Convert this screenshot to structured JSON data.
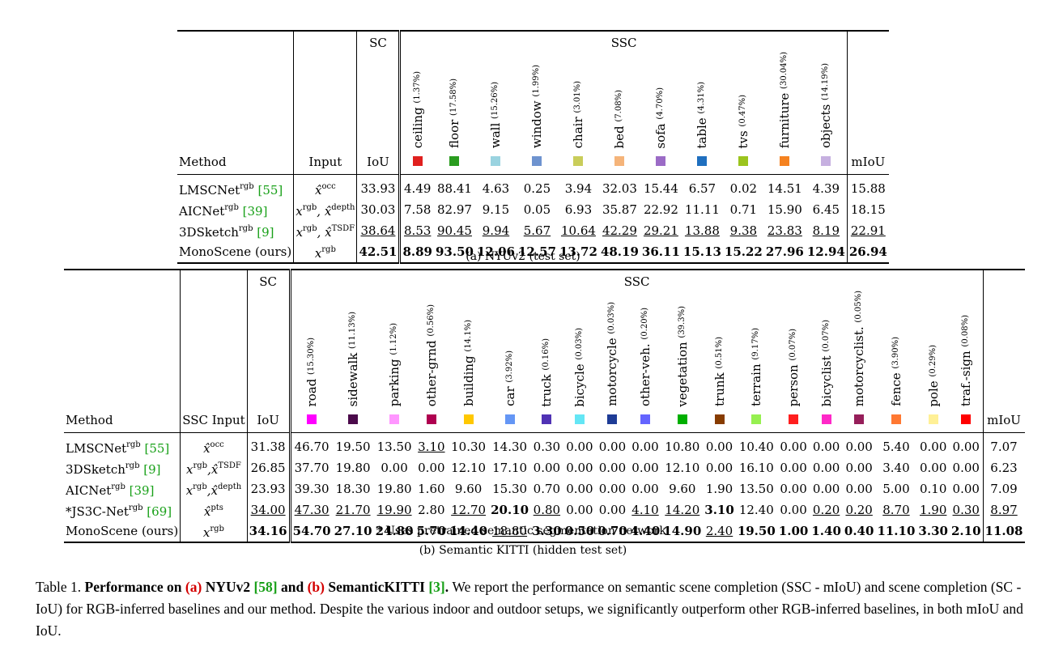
{
  "nyu": {
    "sc_header": "SC",
    "ssc_header": "SSC",
    "method_header": "Method",
    "input_header": "Input",
    "iou_header": "IoU",
    "miou_header": "mIoU",
    "classes": [
      {
        "name": "ceiling",
        "pct": "(1.37%)",
        "color": "#e0201e"
      },
      {
        "name": "floor",
        "pct": "(17.58%)",
        "color": "#2a9c1f"
      },
      {
        "name": "wall",
        "pct": "(15.26%)",
        "color": "#9ad3e0"
      },
      {
        "name": "window",
        "pct": "(1.99%)",
        "color": "#6e93cf"
      },
      {
        "name": "chair",
        "pct": "(3.01%)",
        "color": "#c9cd5a"
      },
      {
        "name": "bed",
        "pct": "(7.08%)",
        "color": "#f5b47a"
      },
      {
        "name": "sofa",
        "pct": "(4.70%)",
        "color": "#9b6bc6"
      },
      {
        "name": "table",
        "pct": "(4.31%)",
        "color": "#1f6fbf"
      },
      {
        "name": "tvs",
        "pct": "(0.47%)",
        "color": "#9bc41e"
      },
      {
        "name": "furniture",
        "pct": "(30.04%)",
        "color": "#f58220"
      },
      {
        "name": "objects",
        "pct": "(14.19%)",
        "color": "#c6b0e0"
      }
    ],
    "rows": [
      {
        "method": "LMSCNet",
        "sup": "rgb",
        "cite": "[55]",
        "input": "x̂",
        "input_sup": "occ",
        "iou": "33.93",
        "vals": [
          "4.49",
          "88.41",
          "4.63",
          "0.25",
          "3.94",
          "32.03",
          "15.44",
          "6.57",
          "0.02",
          "14.51",
          "4.39"
        ],
        "miou": "15.88"
      },
      {
        "method": "AICNet",
        "sup": "rgb",
        "cite": "[39]",
        "input": "x",
        "input_sup": "rgb",
        "input2": ", x̂",
        "input2_sup": "depth",
        "iou": "30.03",
        "vals": [
          "7.58",
          "82.97",
          "9.15",
          "0.05",
          "6.93",
          "35.87",
          "22.92",
          "11.11",
          "0.71",
          "15.90",
          "6.45"
        ],
        "miou": "18.15"
      },
      {
        "method": "3DSketch",
        "sup": "rgb",
        "cite": "[9]",
        "input": "x",
        "input_sup": "rgb",
        "input2": ", x̂",
        "input2_sup": "TSDF",
        "iou": "38.64",
        "vals": [
          "8.53",
          "90.45",
          "9.94",
          "5.67",
          "10.64",
          "42.29",
          "29.21",
          "13.88",
          "9.38",
          "23.83",
          "8.19"
        ],
        "miou": "22.91"
      },
      {
        "method": "MonoScene (ours)",
        "sup": "",
        "cite": "",
        "input": "x",
        "input_sup": "rgb",
        "iou": "42.51",
        "vals": [
          "8.89",
          "93.50",
          "12.06",
          "12.57",
          "13.72",
          "48.19",
          "36.11",
          "15.13",
          "15.22",
          "27.96",
          "12.94"
        ],
        "miou": "26.94"
      }
    ],
    "caption": "(a) NYUv2 (test set)"
  },
  "kitti": {
    "sc_header": "SC",
    "ssc_header": "SSC",
    "method_header": "Method",
    "input_header": "SSC Input",
    "iou_header": "IoU",
    "miou_header": "mIoU",
    "classes": [
      {
        "name": "road",
        "pct": "(15.30%)",
        "color": "#ff00ff"
      },
      {
        "name": "sidewalk",
        "pct": "(11.13%)",
        "color": "#4b0a4b"
      },
      {
        "name": "parking",
        "pct": "(1.12%)",
        "color": "#ff96ff"
      },
      {
        "name": "other-grnd",
        "pct": "(0.56%)",
        "color": "#af0050"
      },
      {
        "name": "building",
        "pct": "(14.1%)",
        "color": "#ffc800"
      },
      {
        "name": "car",
        "pct": "(3.92%)",
        "color": "#6496f5"
      },
      {
        "name": "truck",
        "pct": "(0.16%)",
        "color": "#5032b4"
      },
      {
        "name": "bicycle",
        "pct": "(0.03%)",
        "color": "#64e6f5"
      },
      {
        "name": "motorcycle",
        "pct": "(0.03%)",
        "color": "#1e3c96"
      },
      {
        "name": "other-veh.",
        "pct": "(0.20%)",
        "color": "#6464ff"
      },
      {
        "name": "vegetation",
        "pct": "(39.3%)",
        "color": "#00af00"
      },
      {
        "name": "trunk",
        "pct": "(0.51%)",
        "color": "#873c00"
      },
      {
        "name": "terrain",
        "pct": "(9.17%)",
        "color": "#96f050"
      },
      {
        "name": "person",
        "pct": "(0.07%)",
        "color": "#ff1e1e"
      },
      {
        "name": "bicyclist",
        "pct": "(0.07%)",
        "color": "#ff28c8"
      },
      {
        "name": "motorcyclist.",
        "pct": "(0.05%)",
        "color": "#961e5a"
      },
      {
        "name": "fence",
        "pct": "(3.90%)",
        "color": "#ff7832"
      },
      {
        "name": "pole",
        "pct": "(0.29%)",
        "color": "#fff096"
      },
      {
        "name": "traf.-sign",
        "pct": "(0.08%)",
        "color": "#ff0000"
      }
    ],
    "rows": [
      {
        "method": "LMSCNet",
        "sup": "rgb",
        "cite": "[55]",
        "input": "x̂",
        "input_sup": "occ",
        "iou": "31.38",
        "vals": [
          "46.70",
          "19.50",
          "13.50",
          "3.10",
          "10.30",
          "14.30",
          "0.30",
          "0.00",
          "0.00",
          "0.00",
          "10.80",
          "0.00",
          "10.40",
          "0.00",
          "0.00",
          "0.00",
          "5.40",
          "0.00",
          "0.00"
        ],
        "miou": "7.07"
      },
      {
        "method": "3DSketch",
        "sup": "rgb",
        "cite": "[9]",
        "input": "x",
        "input_sup": "rgb",
        "input2": ",x̂",
        "input2_sup": "TSDF",
        "iou": "26.85",
        "vals": [
          "37.70",
          "19.80",
          "0.00",
          "0.00",
          "12.10",
          "17.10",
          "0.00",
          "0.00",
          "0.00",
          "0.00",
          "12.10",
          "0.00",
          "16.10",
          "0.00",
          "0.00",
          "0.00",
          "3.40",
          "0.00",
          "0.00"
        ],
        "miou": "6.23"
      },
      {
        "method": "AICNet",
        "sup": "rgb",
        "cite": "[39]",
        "input": "x",
        "input_sup": "rgb",
        "input2": ",x̂",
        "input2_sup": "depth",
        "iou": "23.93",
        "vals": [
          "39.30",
          "18.30",
          "19.80",
          "1.60",
          "9.60",
          "15.30",
          "0.70",
          "0.00",
          "0.00",
          "0.00",
          "9.60",
          "1.90",
          "13.50",
          "0.00",
          "0.00",
          "0.00",
          "5.00",
          "0.10",
          "0.00"
        ],
        "miou": "7.09"
      },
      {
        "method": "*JS3C-Net",
        "sup": "rgb",
        "cite": "[69]",
        "input": "x̂",
        "input_sup": "pts",
        "iou": "34.00",
        "vals": [
          "47.30",
          "21.70",
          "19.90",
          "2.80",
          "12.70",
          "20.10",
          "0.80",
          "0.00",
          "0.00",
          "4.10",
          "14.20",
          "3.10",
          "12.40",
          "0.00",
          "0.20",
          "0.20",
          "8.70",
          "1.90",
          "0.30"
        ],
        "miou": "8.97"
      },
      {
        "method": "MonoScene (ours)",
        "sup": "",
        "cite": "",
        "input": "x",
        "input_sup": "rgb",
        "iou": "34.16",
        "vals": [
          "54.70",
          "27.10",
          "24.80",
          "5.70",
          "14.40",
          "18.80",
          "3.30",
          "0.50",
          "0.70",
          "4.40",
          "14.90",
          "2.40",
          "19.50",
          "1.00",
          "1.40",
          "0.40",
          "11.10",
          "3.30",
          "2.10"
        ],
        "miou": "11.08"
      }
    ],
    "footnote": "* Uses pretrained semantic segmentation network.",
    "caption": "(b) Semantic KITTI (hidden test set)"
  },
  "table_caption": {
    "prefix": "Table 1.",
    "bold1": "Performance on",
    "a": "(a)",
    "bold2": "NYUv2",
    "cite1": "[58]",
    "and": "and",
    "b": "(b)",
    "bold3": "SemanticKITTI",
    "cite2": "[3]",
    "end": ".",
    "body": "We report the performance on semantic scene completion (SSC - mIoU) and scene completion (SC - IoU) for RGB-inferred baselines and our method. Despite the various indoor and outdoor setups, we significantly outperform other RGB-inferred baselines, in both mIoU and IoU."
  },
  "styles": {
    "nyu": {
      "bold": {
        "3": "all"
      },
      "underline": {
        "2": "all"
      }
    },
    "kitti_bold": [
      [],
      [],
      [],
      [],
      [
        "iou",
        "0",
        "1",
        "2",
        "3",
        "4",
        "6",
        "7",
        "8",
        "9",
        "10",
        "12",
        "13",
        "14",
        "15",
        "16",
        "17",
        "18",
        "miou"
      ]
    ],
    "kitti_underline": [
      [
        "3"
      ],
      [],
      [],
      [
        "iou",
        "0",
        "1",
        "2",
        "4",
        "6",
        "9",
        "10",
        "14",
        "15",
        "16",
        "17",
        "18",
        "miou"
      ],
      [
        "5",
        "11"
      ]
    ],
    "kitti_bold_extra": {
      "3": [
        "5",
        "11"
      ]
    }
  }
}
